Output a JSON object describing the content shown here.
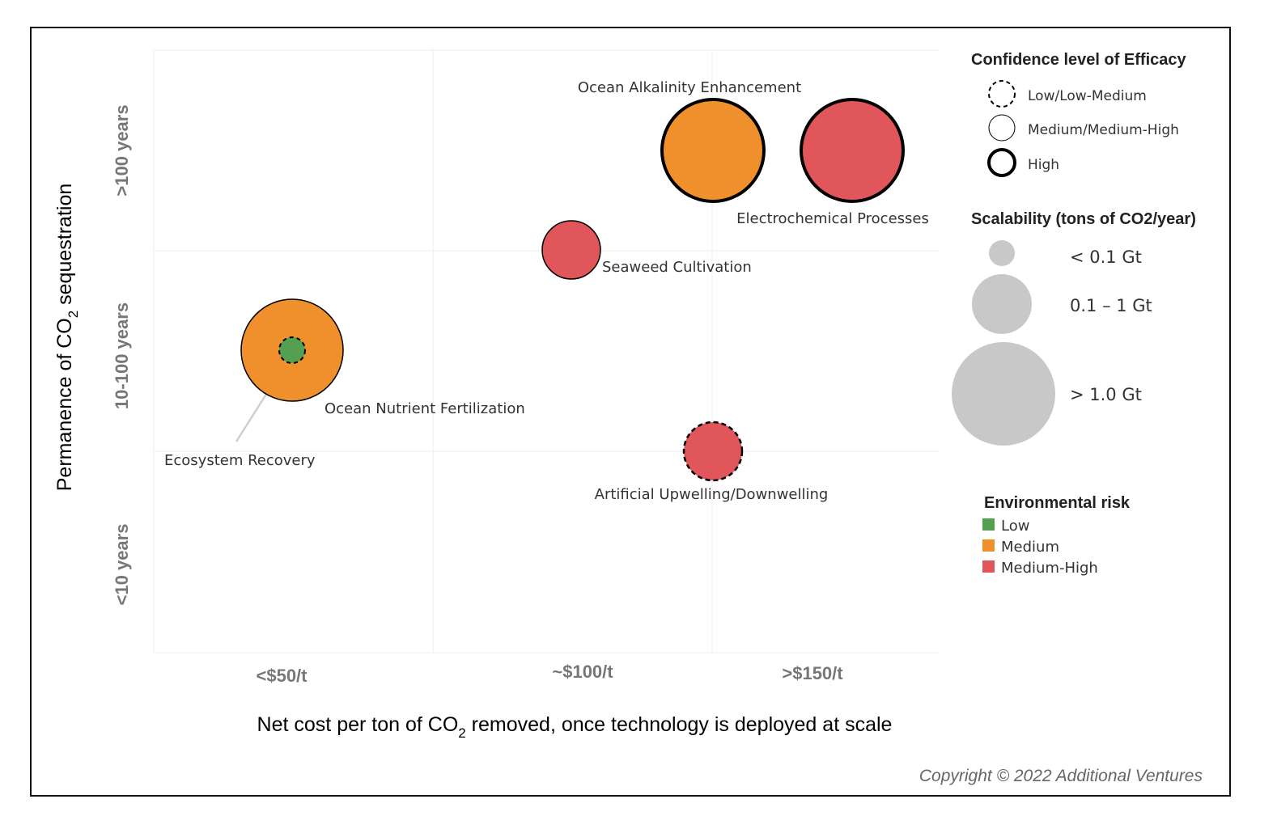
{
  "chart_data": {
    "type": "scatter",
    "title": "",
    "xlabel": "Net cost per ton of CO2 removed, once technology is  deployed at scale",
    "ylabel": "Permanence of CO2 sequestration",
    "x_categories": [
      "<$50/t",
      "~$100/t",
      ">$150/t"
    ],
    "y_categories": [
      "<10 years",
      "10-100 years",
      ">100 years"
    ],
    "grid": true,
    "points": [
      {
        "label": "Ocean Alkalinity Enhancement",
        "x": 3.0,
        "y": 3.5,
        "risk": "Medium",
        "confidence": "High",
        "scalability": "> 1.0 Gt"
      },
      {
        "label": "Electrochemical Processes",
        "x": 3.5,
        "y": 3.5,
        "risk": "Medium-High",
        "confidence": "High",
        "scalability": "> 1.0 Gt"
      },
      {
        "label": "Seaweed Cultivation",
        "x": 2.5,
        "y": 3.0,
        "risk": "Medium-High",
        "confidence": "Medium/Medium-High",
        "scalability": "0.1 – 1 Gt"
      },
      {
        "label": "Ocean Nutrient Fertilization",
        "x": 1.5,
        "y": 2.5,
        "risk": "Medium",
        "confidence": "Medium/Medium-High",
        "scalability": "> 1.0 Gt"
      },
      {
        "label": "Ecosystem Recovery",
        "x": 1.5,
        "y": 2.5,
        "risk": "Low",
        "confidence": "Low/Low-Medium",
        "scalability": "< 0.1 Gt"
      },
      {
        "label": "Artificial Upwelling/Downwelling",
        "x": 3.0,
        "y": 2.0,
        "risk": "Medium-High",
        "confidence": "Low/Low-Medium",
        "scalability": "0.1 – 1 Gt"
      }
    ]
  },
  "axes": {
    "x_title_pre": "Net cost per ton of CO",
    "x_title_sub": "2",
    "x_title_post": " removed, once technology is  deployed at scale",
    "y_title_pre": "Permanence of CO",
    "y_title_sub": "2",
    "y_title_post": " sequestration"
  },
  "legend": {
    "confidence_title": "Confidence level of Efficacy",
    "confidence_items": [
      "Low/Low-Medium",
      "Medium/Medium-High",
      "High"
    ],
    "scalability_title": "Scalability (tons of CO2/year)",
    "scalability_items": [
      "< 0.1 Gt",
      "0.1 – 1 Gt",
      "> 1.0 Gt"
    ],
    "risk_title": "Environmental risk",
    "risk_items": [
      {
        "label": "Low",
        "color": "#55a050"
      },
      {
        "label": "Medium",
        "color": "#f0902d"
      },
      {
        "label": "Medium-High",
        "color": "#e0565b"
      }
    ]
  },
  "colors": {
    "low": "#55a050",
    "medium": "#f0902d",
    "medium_high": "#e0565b",
    "scale_grey": "#c8c8c8"
  },
  "copyright": "Copyright © 2022 Additional Ventures"
}
